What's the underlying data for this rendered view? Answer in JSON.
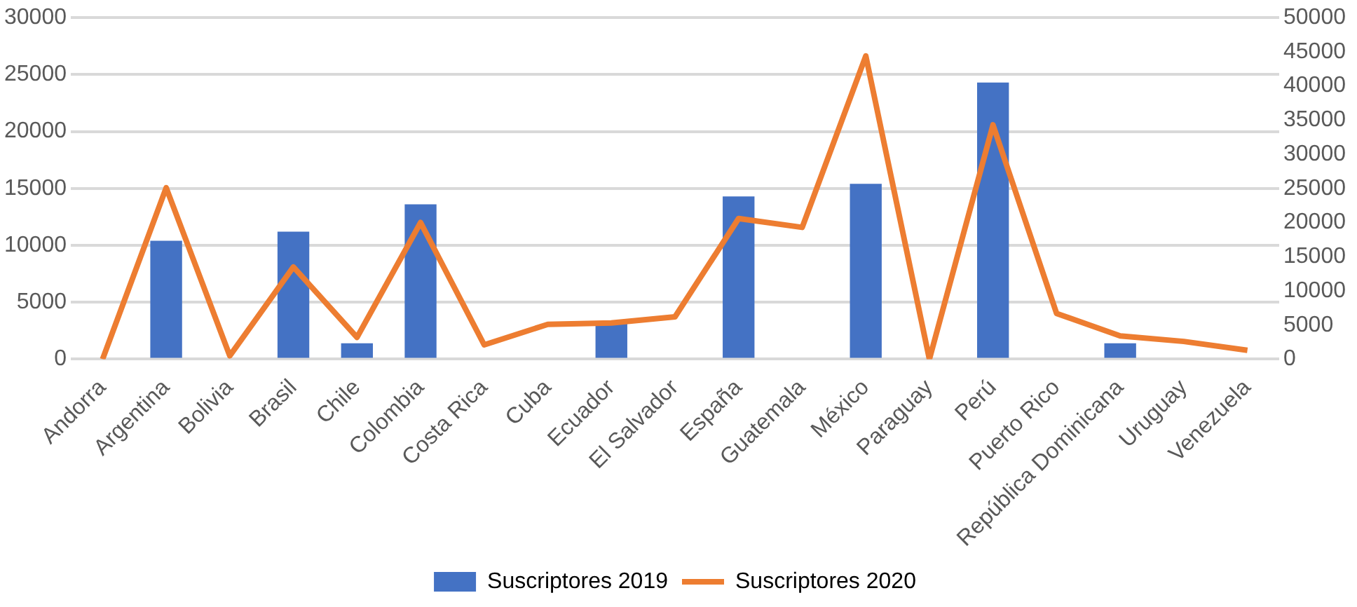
{
  "chart_data": {
    "type": "bar",
    "categories": [
      "Andorra",
      "Argentina",
      "Bolivia",
      "Brasil",
      "Chile",
      "Colombia",
      "Costa Rica",
      "Cuba",
      "Ecuador",
      "El Salvador",
      "España",
      "Guatemala",
      "México",
      "Paraguay",
      "Perú",
      "Puerto Rico",
      "República Dominicana",
      "Uruguay",
      "Venezuela"
    ],
    "series": [
      {
        "name": "Suscriptores 2019",
        "color": "#4472c4",
        "values": [
          null,
          10400,
          0,
          11200,
          1400,
          13600,
          0,
          0,
          3100,
          0,
          14300,
          0,
          15400,
          0,
          24300,
          0,
          1400,
          0,
          0
        ]
      },
      {
        "name": "Suscriptores 2020",
        "type": "line",
        "axis": "y2",
        "color": "#ed7d31",
        "values": [
          0,
          25100,
          500,
          13500,
          3200,
          20000,
          2100,
          5100,
          5300,
          6200,
          20600,
          19300,
          44400,
          0,
          34300,
          6700,
          3400,
          2600,
          1300
        ]
      }
    ],
    "ylim": [
      0,
      30000
    ],
    "yticks": [
      0,
      5000,
      10000,
      15000,
      20000,
      25000,
      30000
    ],
    "y2lim": [
      0,
      50000
    ],
    "y2ticks": [
      0,
      5000,
      10000,
      15000,
      20000,
      25000,
      30000,
      35000,
      40000,
      45000,
      50000
    ],
    "grid": "y",
    "legend": "bottom",
    "marker": "none"
  }
}
